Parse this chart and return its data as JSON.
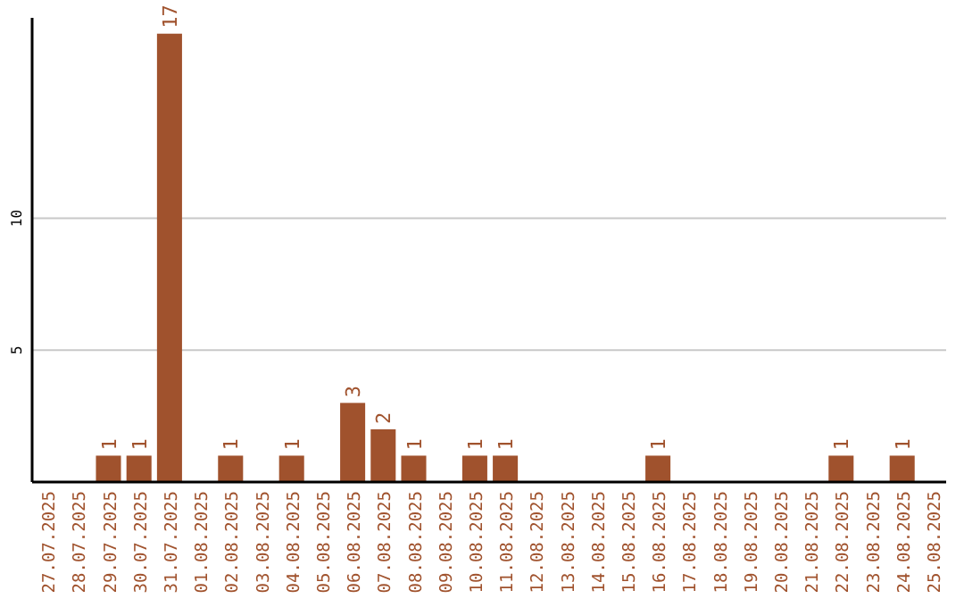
{
  "chart_data": {
    "type": "bar",
    "categories": [
      "27.07.2025",
      "28.07.2025",
      "29.07.2025",
      "30.07.2025",
      "31.07.2025",
      "01.08.2025",
      "02.08.2025",
      "03.08.2025",
      "04.08.2025",
      "05.08.2025",
      "06.08.2025",
      "07.08.2025",
      "08.08.2025",
      "09.08.2025",
      "10.08.2025",
      "11.08.2025",
      "12.08.2025",
      "13.08.2025",
      "14.08.2025",
      "15.08.2025",
      "16.08.2025",
      "17.08.2025",
      "18.08.2025",
      "19.08.2025",
      "20.08.2025",
      "21.08.2025",
      "22.08.2025",
      "23.08.2025",
      "24.08.2025",
      "25.08.2025"
    ],
    "values": [
      0,
      0,
      1,
      1,
      17,
      0,
      1,
      0,
      1,
      0,
      3,
      2,
      1,
      0,
      1,
      1,
      0,
      0,
      0,
      0,
      1,
      0,
      0,
      0,
      0,
      0,
      1,
      0,
      1,
      0
    ],
    "value_labels": [
      null,
      null,
      "1",
      "1",
      "17",
      null,
      "1",
      null,
      "1",
      null,
      "3",
      "2",
      "1",
      null,
      "1",
      "1",
      null,
      null,
      null,
      null,
      "1",
      null,
      null,
      null,
      null,
      null,
      "1",
      null,
      "1",
      null
    ],
    "color": "#a0522d",
    "ylim": [
      0,
      17.6
    ],
    "yticks": [
      5,
      10
    ],
    "grid": "y"
  }
}
